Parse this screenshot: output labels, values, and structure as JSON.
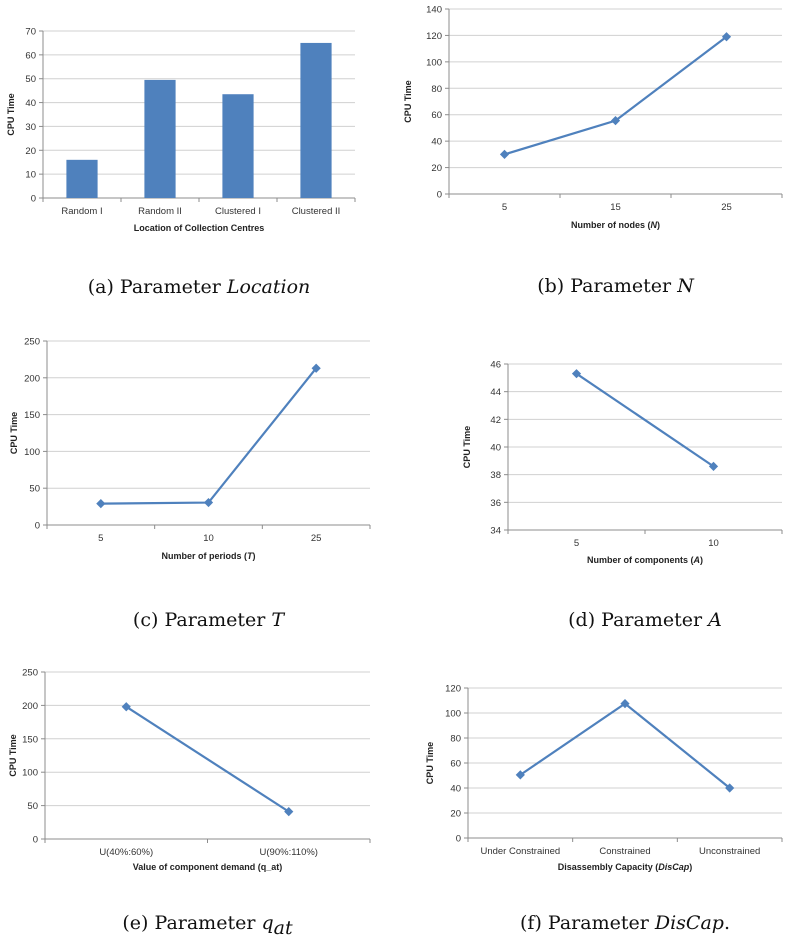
{
  "colors": {
    "accent": "#4F81BD",
    "axis": "#8C8C8C",
    "grid": "#D0D0D0",
    "text": "#333333"
  },
  "chart_data": [
    {
      "type": "bar",
      "categories": [
        "Random I",
        "Random II",
        "Clustered I",
        "Clustered II"
      ],
      "values": [
        16,
        49.5,
        43.5,
        65
      ],
      "ylim": [
        0,
        70
      ],
      "yticks": [
        0,
        10,
        20,
        30,
        40,
        50,
        60,
        70
      ],
      "ylabel": "CPU Time",
      "xlabel": "Location of Collection Centres",
      "caption": {
        "tag": "(a)",
        "text": "Parameter",
        "math": "Location"
      },
      "grid": "y"
    },
    {
      "type": "line",
      "categories": [
        "5",
        "15",
        "25"
      ],
      "values": [
        30,
        55.5,
        119
      ],
      "ylim": [
        0,
        140
      ],
      "yticks": [
        0,
        20,
        40,
        60,
        80,
        100,
        120,
        140
      ],
      "ylabel": "CPU Time",
      "xlabel": {
        "text": "Number of nodes (",
        "math": "N",
        "suffix": ")"
      },
      "caption": {
        "tag": "(b)",
        "text": "Parameter",
        "math": "N"
      },
      "grid": "y"
    },
    {
      "type": "line",
      "categories": [
        "5",
        "10",
        "25"
      ],
      "values": [
        29,
        30.5,
        213
      ],
      "ylim": [
        0,
        250
      ],
      "yticks": [
        0,
        50,
        100,
        150,
        200,
        250
      ],
      "ylabel": "CPU Time",
      "xlabel": {
        "text": "Number of periods (",
        "math": "T",
        "suffix": ")"
      },
      "caption": {
        "tag": "(c)",
        "text": "Parameter",
        "math": "T"
      },
      "grid": "y"
    },
    {
      "type": "line",
      "categories": [
        "5",
        "10"
      ],
      "values": [
        45.3,
        38.6
      ],
      "ylim": [
        34,
        46
      ],
      "yticks": [
        34,
        36,
        38,
        40,
        42,
        44,
        46
      ],
      "ylabel": "CPU Time",
      "xlabel": {
        "text": "Number of components (",
        "math": "A",
        "suffix": ")"
      },
      "caption": {
        "tag": "(d)",
        "text": "Parameter",
        "math": "A"
      },
      "grid": "y"
    },
    {
      "type": "line",
      "categories": [
        "U(40%:60%)",
        "U(90%:110%)"
      ],
      "values": [
        198,
        41
      ],
      "ylim": [
        0,
        250
      ],
      "yticks": [
        0,
        50,
        100,
        150,
        200,
        250
      ],
      "ylabel": "CPU Time",
      "xlabel": "Value of component demand (q_at)",
      "caption": {
        "tag": "(e)",
        "text": "Parameter",
        "math": "q",
        "sub": "at"
      },
      "grid": "y"
    },
    {
      "type": "line",
      "categories": [
        "Under Constrained",
        "Constrained",
        "Unconstrained"
      ],
      "values": [
        50.5,
        107.5,
        40
      ],
      "ylim": [
        0,
        120
      ],
      "yticks": [
        0,
        20,
        40,
        60,
        80,
        100,
        120
      ],
      "ylabel": "CPU Time",
      "xlabel": {
        "text": "Disassembly Capacity (",
        "math": "DisCap",
        "suffix": ")"
      },
      "caption": {
        "tag": "(f)",
        "text": "Parameter",
        "math": "DisCap",
        "suffix": "."
      },
      "grid": "y"
    }
  ]
}
